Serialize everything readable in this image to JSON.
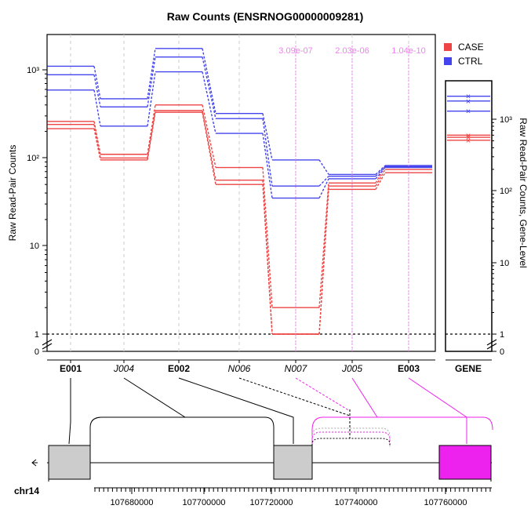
{
  "chart_data": {
    "type": "line",
    "title": "Raw Counts (ENSRNOG00000009281)",
    "ylabel_left": "Raw Read-Pair Counts",
    "ylabel_right": "Raw Read-Pair Counts, Gene-Level",
    "y_scale": "log",
    "ylim": [
      1,
      2000
    ],
    "y_ticks_left": [
      "10³",
      "10²",
      "10",
      "1",
      "0"
    ],
    "y_ticks_right": [
      "10³",
      "10²",
      "10",
      "1",
      "0"
    ],
    "features": [
      {
        "label": "E001",
        "italic": false
      },
      {
        "label": "J004",
        "italic": true
      },
      {
        "label": "E002",
        "italic": false
      },
      {
        "label": "N006",
        "italic": true
      },
      {
        "label": "N007",
        "italic": true
      },
      {
        "label": "J005",
        "italic": true
      },
      {
        "label": "E003",
        "italic": false
      }
    ],
    "gene_label": "GENE",
    "pvalues": [
      {
        "feature": "N007",
        "text": "3.09e-07"
      },
      {
        "feature": "J005",
        "text": "2.03e-06"
      },
      {
        "feature": "E003",
        "text": "1.04e-10"
      }
    ],
    "legend": [
      {
        "name": "CASE",
        "color": "#ee4444"
      },
      {
        "name": "CTRL",
        "color": "#4444ee"
      }
    ],
    "series": [
      {
        "group": "CASE",
        "values": [
          260,
          110,
          400,
          78,
          2,
          52,
          80
        ],
        "gene": 600
      },
      {
        "group": "CASE",
        "values": [
          240,
          100,
          345,
          56,
          1,
          48,
          74
        ],
        "gene": 560
      },
      {
        "group": "CASE",
        "values": [
          215,
          95,
          330,
          50,
          1,
          44,
          68
        ],
        "gene": 510
      },
      {
        "group": "CTRL",
        "values": [
          1100,
          470,
          1750,
          320,
          95,
          65,
          82
        ],
        "gene": 2100
      },
      {
        "group": "CTRL",
        "values": [
          880,
          380,
          1400,
          280,
          48,
          62,
          80
        ],
        "gene": 1800
      },
      {
        "group": "CTRL",
        "values": [
          590,
          230,
          950,
          190,
          35,
          58,
          78
        ],
        "gene": 1300
      }
    ],
    "gene_model": {
      "chromosome": "chr14",
      "x_ticks": [
        "107680000",
        "107700000",
        "107720000",
        "107740000",
        "107760000"
      ],
      "highlight_color": "#ee22ee",
      "exon_color": "#cccccc"
    }
  }
}
